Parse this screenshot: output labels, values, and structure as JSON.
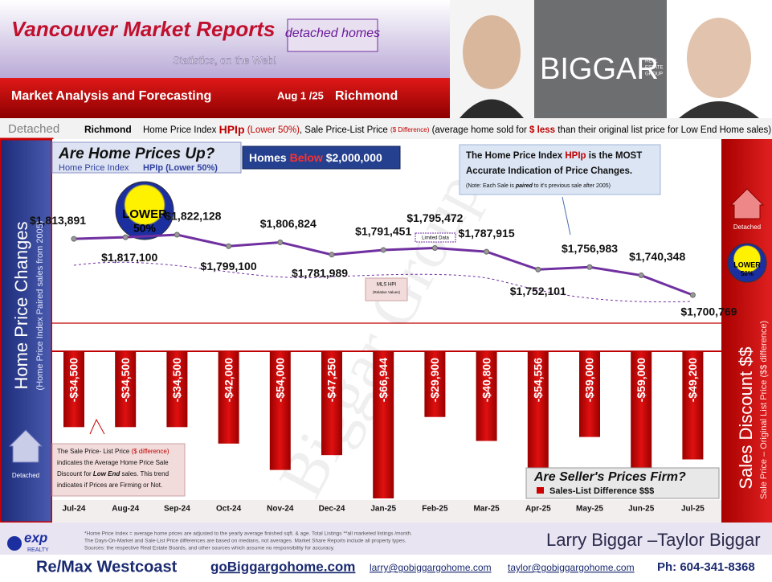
{
  "header": {
    "title": "Vancouver Market Reports",
    "tagline": "Statistics, on the Web!",
    "badge": "detached homes",
    "banner": "Market Analysis and Forecasting",
    "date": "Aug 1 /25",
    "area": "Richmond",
    "logo": "BIGGAR",
    "logo_sub": [
      "REAL",
      "ESTATE",
      "GROUP"
    ]
  },
  "subheader": {
    "type": "Detached",
    "area": "Richmond",
    "parts": [
      "Home Price Index",
      "HPIp",
      "(Lower 50%)",
      ", Sale Price-List Price",
      "($ Difference)",
      "(average home sold for",
      "$ less",
      "than their original list price for Low End Home sales)"
    ]
  },
  "sidebars": {
    "left_title": "Home Price Changes",
    "left_subtitle": "(Home Price Index Paired sales from 2005)",
    "left_tag": "Detached",
    "right_title": "Sales Discount $$",
    "right_subtitle": "Sale Price – Original List Price ($$ difference)",
    "right_tag": "Detached",
    "right_badge": [
      "LOWER",
      "50%"
    ]
  },
  "panels": {
    "homes_filter": [
      "Homes",
      "Below",
      "$2,000,000"
    ],
    "lower_badge": [
      "LOWER",
      "50%"
    ],
    "limited_data": "Limited Data",
    "mls_hpi": [
      "MLS HPI",
      "(Relative Values)"
    ],
    "hpi_note": [
      "The Home Price Index",
      "HPIp",
      "is the MOST",
      "Accurate Indication of Price Changes.",
      "(Note: Each Sale is",
      "paired",
      "to it's previous sale after 2005)"
    ],
    "discount_note": [
      "The  Sale Price- List Price",
      "($ difference)",
      "indicates the Average Home Price Sale",
      "Discount for",
      "Low End",
      "sales. This trend",
      "indicates if Prices are Firming or Not."
    ]
  },
  "watermark": "Biggar Group",
  "chart_data": [
    {
      "type": "line",
      "title": "Are Home Prices Up?",
      "subtitle": "Home Price Index",
      "series": [
        {
          "name": "HPIp (Lower 50%)",
          "color": "#7030a0",
          "values": [
            1813891,
            1817100,
            1822128,
            1799100,
            1806824,
            1781989,
            1791451,
            1795472,
            1787915,
            1752101,
            1756983,
            1740348,
            1700769
          ],
          "value_labels": [
            "$1,813,891",
            "$1,817,100",
            "$1,822,128",
            "$1,799,100",
            "$1,806,824",
            "$1,781,989",
            "$1,791,451",
            "$1,795,472",
            "$1,787,915",
            "$1,752,101",
            "$1,756,983",
            "$1,740,348",
            "$1,700,769"
          ]
        }
      ]
    },
    {
      "type": "bar",
      "title": "Are Seller's Prices Firm?",
      "categories": [
        "Jul-24",
        "Aug-24",
        "Sep-24",
        "Oct-24",
        "Nov-24",
        "Dec-24",
        "Jan-25",
        "Feb-25",
        "Mar-25",
        "Apr-25",
        "May-25",
        "Jun-25",
        "Jul-25"
      ],
      "series": [
        {
          "name": "Sales-List Difference $$$",
          "color": "#cc0000",
          "values": [
            -34500,
            -34500,
            -34500,
            -42000,
            -54000,
            -47250,
            -66944,
            -29900,
            -40800,
            -54556,
            -39000,
            -59000,
            -49200
          ],
          "value_labels": [
            "-$34,500",
            "-$34,500",
            "-$34,500",
            "-$42,000",
            "-$54,000",
            "-$47,250",
            "-$66,944",
            "-$29,900",
            "-$40,800",
            "-$54,556",
            "-$39,000",
            "-$59,000",
            "-$49,200"
          ]
        }
      ]
    }
  ],
  "footer": {
    "brand": [
      "exp",
      "REALTY"
    ],
    "notes": [
      "*Home Price Index = average home prices are adjusted to the yearly average finished sqft. & age.  Total Listings **all marketed listings /month.",
      "The Days-On-Market and Sale-List Price differences are based on medians, not averages. Market Share Reports include all property types.",
      "Sources:  the respective Real Estate Boards, and other sources which assume no responsibility for accuracy."
    ],
    "agents": "Larry Biggar –Taylor Biggar",
    "brokerage": "Re/Max Westcoast",
    "website": "goBiggargohome.com",
    "email1": "larry@gobiggargohome.com",
    "email2": "taylor@gobiggargohome.com",
    "phone": "Ph: 604-341-8368"
  }
}
